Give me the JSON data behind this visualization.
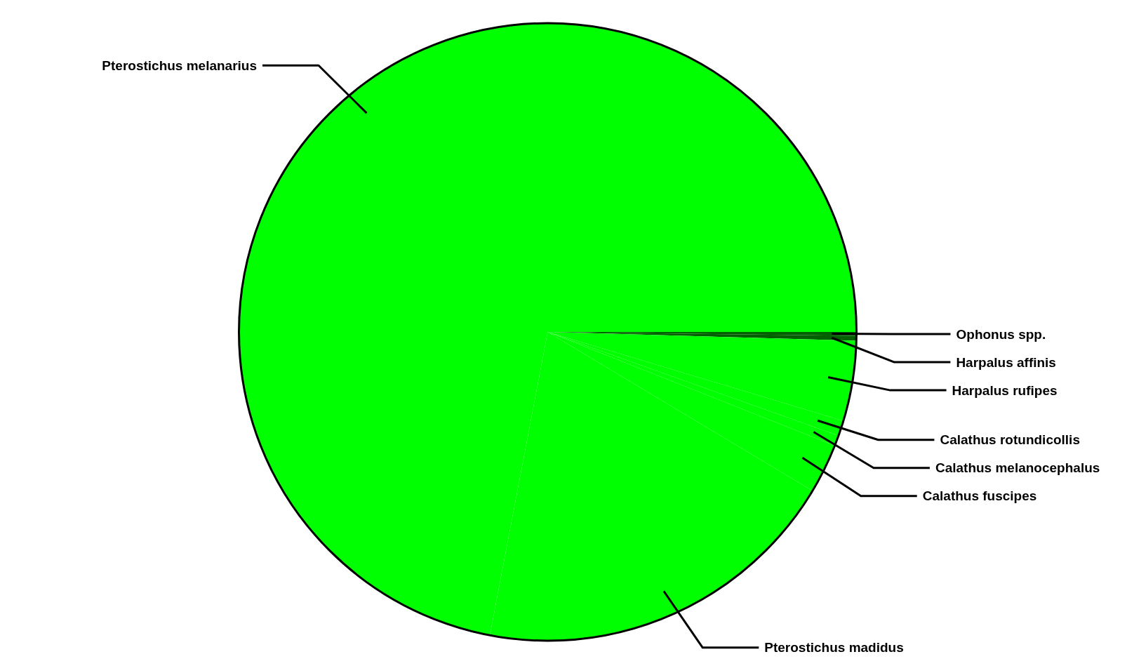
{
  "chart_data": {
    "type": "pie",
    "categories": [
      "Ophonus spp.",
      "Harpalus affinis",
      "Harpalus rufipes",
      "Calathus rotundicollis",
      "Calathus melanocephalus",
      "Calathus fuscipes",
      "Pterostichus madidus",
      "Pterostichus melanarius"
    ],
    "values": [
      0.2,
      0.25,
      4.2,
      0.8,
      0.55,
      2.6,
      19.4,
      72.0
    ],
    "colors": [
      "#006000",
      "#006000",
      "#00ff00",
      "#00ff00",
      "#00ff00",
      "#00ff00",
      "#00ff00",
      "#00ff00"
    ]
  }
}
